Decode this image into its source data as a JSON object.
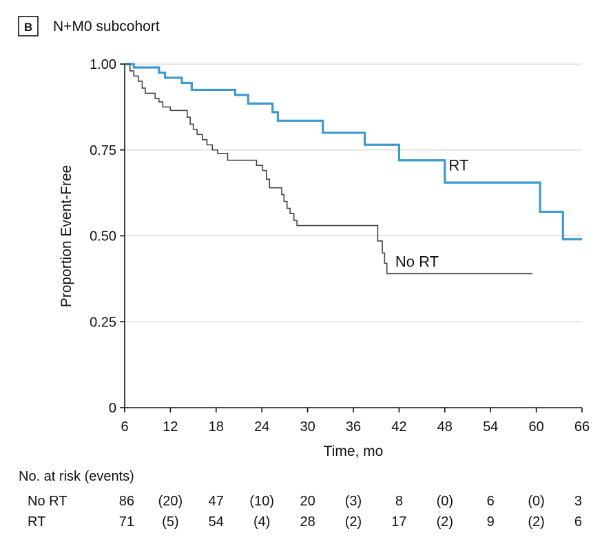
{
  "panel": {
    "letter": "B",
    "title": "N+M0 subcohort"
  },
  "chart_data": {
    "type": "line",
    "subtype": "kaplan-meier-step",
    "xlabel": "Time, mo",
    "ylabel": "Proportion Event-Free",
    "xlim": [
      6,
      66
    ],
    "ylim": [
      0,
      1
    ],
    "xticks": [
      6,
      12,
      18,
      24,
      30,
      36,
      42,
      48,
      54,
      60,
      66
    ],
    "yticks": [
      0,
      0.25,
      0.5,
      0.75,
      1.0
    ],
    "ytick_labels": [
      "0",
      "0.25",
      "0.50",
      "0.75",
      "1.00"
    ],
    "grid": "horizontal",
    "colors": {
      "RT": "#3d9ad1",
      "No RT": "#444444"
    },
    "series": [
      {
        "name": "RT",
        "label_pos": [
          48.5,
          0.69
        ],
        "points": [
          [
            6,
            1.0
          ],
          [
            7.2,
            0.99
          ],
          [
            10.5,
            0.975
          ],
          [
            11.3,
            0.96
          ],
          [
            13.5,
            0.945
          ],
          [
            14.8,
            0.925
          ],
          [
            20.5,
            0.91
          ],
          [
            22.2,
            0.885
          ],
          [
            25.4,
            0.86
          ],
          [
            26.1,
            0.835
          ],
          [
            32.0,
            0.8
          ],
          [
            37.5,
            0.765
          ],
          [
            42.0,
            0.72
          ],
          [
            48.0,
            0.655
          ],
          [
            60.5,
            0.57
          ],
          [
            63.5,
            0.49
          ],
          [
            66,
            0.49
          ]
        ]
      },
      {
        "name": "No RT",
        "label_pos": [
          41.5,
          0.41
        ],
        "points": [
          [
            6,
            1.0
          ],
          [
            6.7,
            0.98
          ],
          [
            7.2,
            0.965
          ],
          [
            7.8,
            0.95
          ],
          [
            8.3,
            0.93
          ],
          [
            8.7,
            0.915
          ],
          [
            10.0,
            0.9
          ],
          [
            10.5,
            0.89
          ],
          [
            11.0,
            0.875
          ],
          [
            12.0,
            0.865
          ],
          [
            14.2,
            0.845
          ],
          [
            14.6,
            0.825
          ],
          [
            15.0,
            0.81
          ],
          [
            15.5,
            0.795
          ],
          [
            16.2,
            0.78
          ],
          [
            16.8,
            0.765
          ],
          [
            17.5,
            0.75
          ],
          [
            18.2,
            0.74
          ],
          [
            19.5,
            0.72
          ],
          [
            23.3,
            0.705
          ],
          [
            24.1,
            0.69
          ],
          [
            24.6,
            0.665
          ],
          [
            25.0,
            0.64
          ],
          [
            26.6,
            0.62
          ],
          [
            26.9,
            0.6
          ],
          [
            27.3,
            0.58
          ],
          [
            27.7,
            0.565
          ],
          [
            28.2,
            0.545
          ],
          [
            28.6,
            0.53
          ],
          [
            39.2,
            0.485
          ],
          [
            39.8,
            0.45
          ],
          [
            40.1,
            0.42
          ],
          [
            40.4,
            0.39
          ],
          [
            59.5,
            0.39
          ]
        ]
      }
    ]
  },
  "risk_table": {
    "header": "No. at risk (events)",
    "rows": [
      {
        "label": "No RT",
        "cells": [
          "86",
          "(20)",
          "47",
          "(10)",
          "20",
          "(3)",
          "8",
          "(0)",
          "6",
          "(0)",
          "3"
        ]
      },
      {
        "label": "RT",
        "cells": [
          "71",
          "(5)",
          "54",
          "(4)",
          "28",
          "(2)",
          "17",
          "(2)",
          "9",
          "(2)",
          "6"
        ]
      }
    ]
  }
}
